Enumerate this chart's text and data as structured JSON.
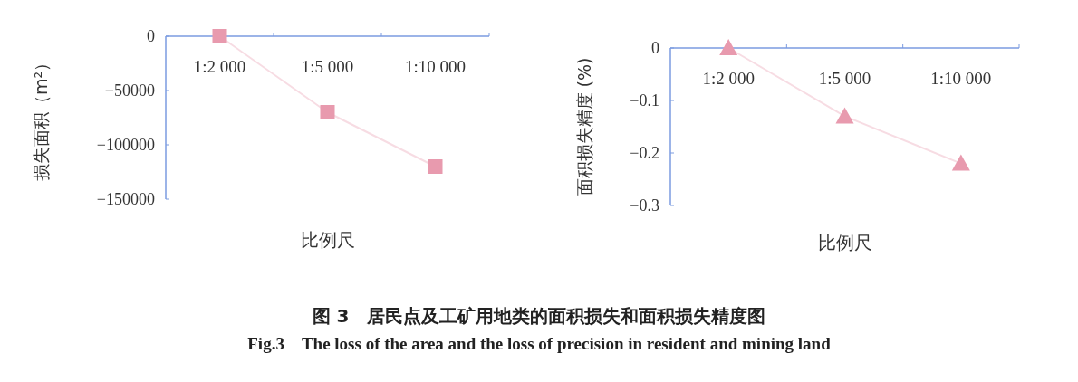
{
  "chart_data": [
    {
      "type": "line",
      "categories": [
        "1:2 000",
        "1:5 000",
        "1:10 000"
      ],
      "xlabel": "比例尺",
      "ylabel": "损失面积（m²）",
      "ylim": [
        -150000,
        0
      ],
      "yticks": [
        0,
        -50000,
        -100000,
        -150000
      ],
      "marker": "square",
      "line_style": "solid",
      "series": [
        {
          "color": "#e89aae",
          "values": [
            0,
            -70000,
            -120000
          ]
        }
      ],
      "annotations": [
        "图 3　居民点及工矿用地类的面积损失和面积损失精度图",
        "Fig.3　The loss of the area and the loss of precision in resident and mining land"
      ]
    },
    {
      "type": "line",
      "categories": [
        "1:2 000",
        "1:5 000",
        "1:10 000"
      ],
      "xlabel": "比例尺",
      "ylabel": "面积损失精度 (%)",
      "ylim": [
        -0.3,
        0
      ],
      "yticks": [
        0,
        -0.1,
        -0.2,
        -0.3
      ],
      "marker": "triangle",
      "line_style": "solid",
      "series": [
        {
          "color": "#e89aae",
          "values": [
            0,
            -0.13,
            -0.22
          ]
        }
      ]
    }
  ]
}
